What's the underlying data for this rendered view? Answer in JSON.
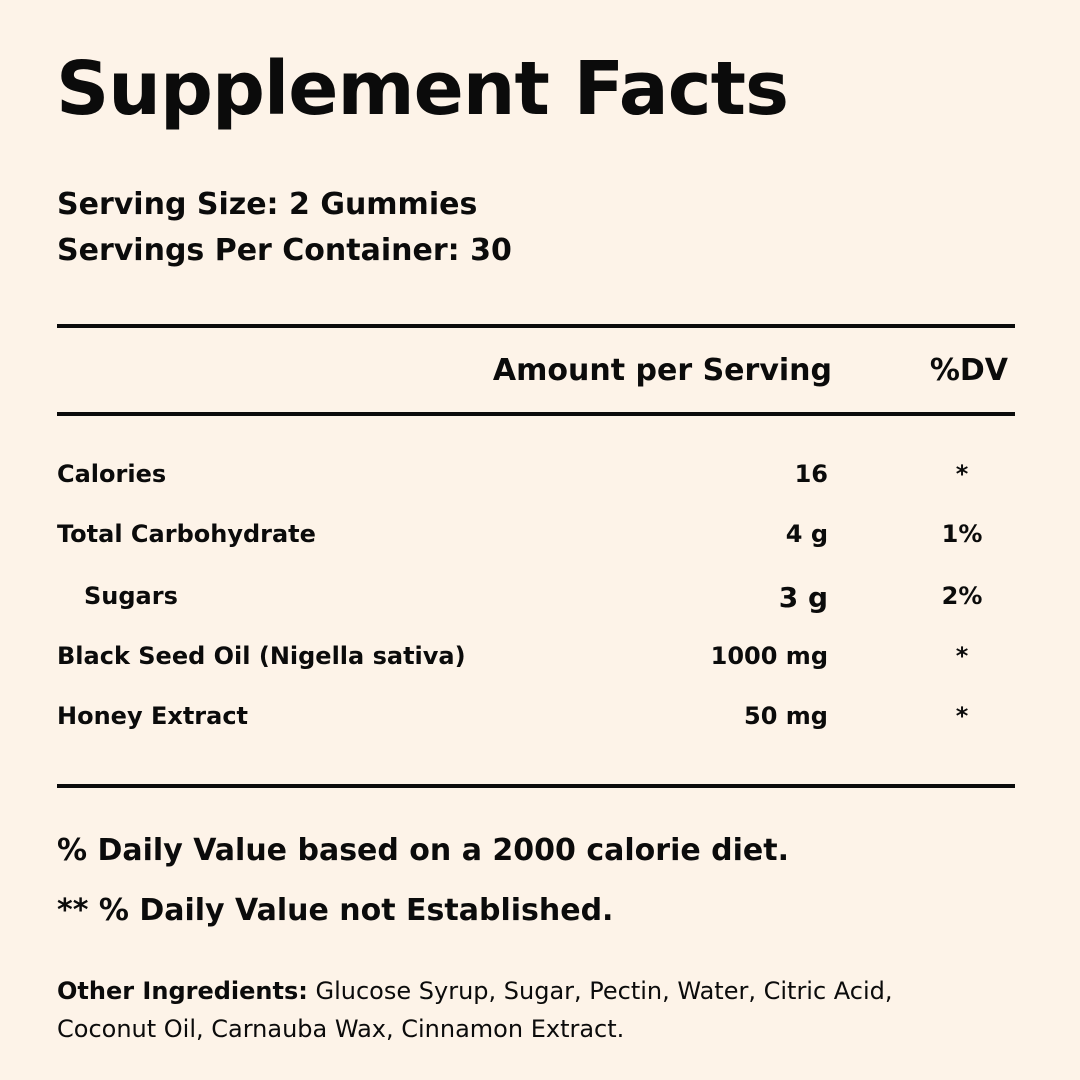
{
  "title": "Supplement Facts",
  "serving_size": "Serving Size: 2 Gummies",
  "servings_per_container": "Servings Per Container: 30",
  "columns": {
    "amount": "Amount per Serving",
    "dv": "%DV"
  },
  "rows": [
    {
      "name": "Calories",
      "amount": "16",
      "dv": "*"
    },
    {
      "name": "Total Carbohydrate",
      "amount": "4 g",
      "dv": "1%"
    },
    {
      "name": "Sugars",
      "amount": "3 g",
      "dv": "2%"
    },
    {
      "name": "Black Seed Oil (Nigella sativa)",
      "amount": "1000 mg",
      "dv": "*"
    },
    {
      "name": "Honey Extract",
      "amount": "50 mg",
      "dv": "*"
    }
  ],
  "footnotes": {
    "daily_value": "% Daily Value based on a 2000 calorie diet.",
    "not_established": "** % Daily Value not Established."
  },
  "ingredients": {
    "label": "Other Ingredients:",
    "text": " Glucose Syrup, Sugar, Pectin, Water, Citric Acid, Coconut Oil, Carnauba Wax, Cinnamon Extract."
  }
}
